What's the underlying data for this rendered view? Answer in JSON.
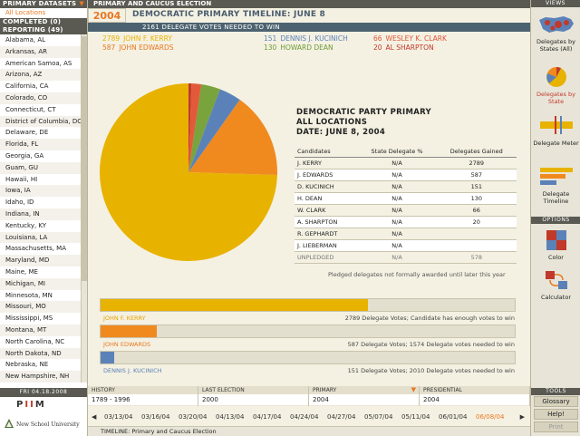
{
  "app": {
    "header_title": "PRIMARY AND CAUCUS ELECTION",
    "year": "2004",
    "timeline_title": "DEMOCRATIC PRIMARY TIMELINE: JUNE 8",
    "needed_text": "2161 DELEGATE VOTES NEEDED TO WIN"
  },
  "left": {
    "datasets_header": "PRIMARY DATASETS",
    "all_locations": "All Locations",
    "completed_header": "COMPLETED (0)",
    "reporting_header": "REPORTING (49)",
    "states": [
      "Alabama, AL",
      "Arkansas, AR",
      "American Samoa, AS",
      "Arizona, AZ",
      "California, CA",
      "Colorado, CO",
      "Connecticut, CT",
      "District of Columbia, DC",
      "Delaware, DE",
      "Florida, FL",
      "Georgia, GA",
      "Guam, GU",
      "Hawaii, HI",
      "Iowa, IA",
      "Idaho, ID",
      "Indiana, IN",
      "Kentucky, KY",
      "Louisiana, LA",
      "Massachusetts, MA",
      "Maryland, MD",
      "Maine, ME",
      "Michigan, MI",
      "Minnesota, MN",
      "Missouri, MO",
      "Mississippi, MS",
      "Montana, MT",
      "North Carolina, NC",
      "North Dakota, ND",
      "Nebraska, NE",
      "New Hampshire, NH"
    ],
    "date_label": "FRI 04.18.2008",
    "piim": "PIIM",
    "university": "New School University"
  },
  "candidates_top": [
    {
      "votes": "2789",
      "name": "JOHN F. KERRY",
      "color": "#e8b200"
    },
    {
      "votes": "587",
      "name": "JOHN EDWARDS",
      "color": "#e87722"
    },
    {
      "votes": "151",
      "name": "DENNIS J. KUCINICH",
      "color": "#5b82b8"
    },
    {
      "votes": "130",
      "name": "HOWARD DEAN",
      "color": "#6e9a36"
    },
    {
      "votes": "66",
      "name": "WESLEY K. CLARK",
      "color": "#e0553a"
    },
    {
      "votes": "20",
      "name": "AL SHARPTON",
      "color": "#c0392b"
    }
  ],
  "chart_data": {
    "type": "pie",
    "categories": [
      "J. KERRY",
      "J. EDWARDS",
      "D. KUCINICH",
      "H. DEAN",
      "W. CLARK",
      "A. SHARPTON"
    ],
    "values": [
      2789,
      587,
      151,
      130,
      66,
      20
    ],
    "colors": [
      "#e8b200",
      "#f08a1f",
      "#5b82b8",
      "#79a33c",
      "#e25a3a",
      "#c0392b"
    ]
  },
  "table": {
    "title_line1": "DEMOCRATIC PARTY PRIMARY",
    "title_line2": "ALL LOCATIONS",
    "title_line3": "DATE: JUNE 8, 2004",
    "headers": [
      "Candidates",
      "State Delegate %",
      "Delegates Gained"
    ],
    "rows": [
      [
        "J. KERRY",
        "N/A",
        "2789"
      ],
      [
        "J. EDWARDS",
        "N/A",
        "587"
      ],
      [
        "D. KUCINICH",
        "N/A",
        "151"
      ],
      [
        "H. DEAN",
        "N/A",
        "130"
      ],
      [
        "W. CLARK",
        "N/A",
        "66"
      ],
      [
        "A. SHARPTON",
        "N/A",
        "20"
      ],
      [
        "R. GEPHARDT",
        "N/A",
        ""
      ],
      [
        "J. LIEBERMAN",
        "N/A",
        ""
      ],
      [
        "UNPLEDGED",
        "N/A",
        "578"
      ]
    ],
    "note": "Pledged delegates not formally awarded until later this year"
  },
  "progress": [
    {
      "name": "JOHN F. KERRY",
      "note": "2789 Delegate Votes; Candidate has enough votes to win",
      "fraction": 0.645,
      "color": "#e8b200",
      "label_color": "#e8a000"
    },
    {
      "name": "JOHN EDWARDS",
      "note": "587 Delegate Votes; 1574 Delegate votes needed to win",
      "fraction": 0.135,
      "color": "#f08a1f",
      "label_color": "#e87722"
    },
    {
      "name": "DENNIS J. KUCINICH",
      "note": "151 Delegate Votes; 2010 Delegate votes needed to win",
      "fraction": 0.033,
      "color": "#5b82b8",
      "label_color": "#5b82b8"
    }
  ],
  "bottom_tabs": [
    {
      "header": "HISTORY",
      "value": "1789 - 1996"
    },
    {
      "header": "LAST ELECTION",
      "value": "2000"
    },
    {
      "header": "PRIMARY",
      "value": "2004"
    },
    {
      "header": "PRESIDENTIAL",
      "value": "2004"
    }
  ],
  "timeline_dates": [
    "03/13/04",
    "03/16/04",
    "03/20/04",
    "04/13/04",
    "04/17/04",
    "04/24/04",
    "04/27/04",
    "05/07/04",
    "05/11/04",
    "06/01/04",
    "06/08/04"
  ],
  "timeline_footer": "TIMELINE: Primary and Caucus Election",
  "right": {
    "views_header": "VIEWS",
    "views": [
      {
        "label": "Delegates by States (All)",
        "icon": "us-map-icon"
      },
      {
        "label": "Delegates by State",
        "icon": "pie-chart-icon"
      },
      {
        "label": "Delegate Meter",
        "icon": "meter-icon"
      },
      {
        "label": "Delegate Timeline",
        "icon": "timeline-icon"
      }
    ],
    "options_header": "OPTIONS",
    "options": [
      {
        "label": "Color",
        "icon": "color-icon"
      },
      {
        "label": "Calculator",
        "icon": "calculator-icon"
      }
    ],
    "tools_header": "TOOLS",
    "tools": [
      "Glossary",
      "Help!",
      "Print"
    ]
  }
}
